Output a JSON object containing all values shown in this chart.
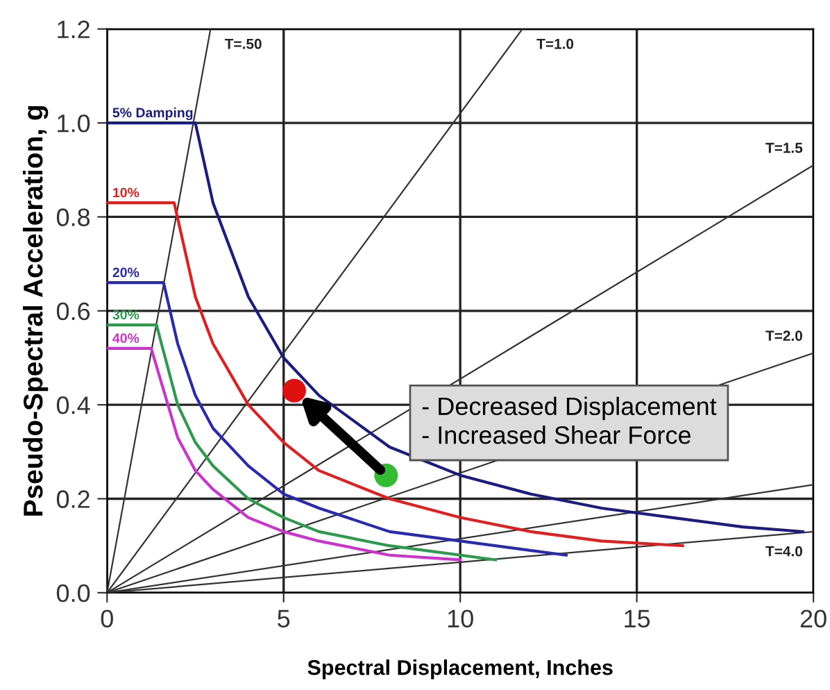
{
  "chart_data": {
    "type": "line",
    "xlabel": "Spectral Displacement, Inches",
    "ylabel": "Pseudo-Spectral Acceleration, g",
    "xlim": [
      0,
      20
    ],
    "ylim": [
      0,
      1.2
    ],
    "xticks": [
      0,
      5,
      10,
      15,
      20
    ],
    "yticks": [
      {
        "value": 0,
        "label": "0.0"
      },
      {
        "value": 0.2,
        "label": "0.2"
      },
      {
        "value": 0.4,
        "label": "0.4"
      },
      {
        "value": 0.6,
        "label": "0.6"
      },
      {
        "value": 0.8,
        "label": "0.8"
      },
      {
        "value": 1.0,
        "label": "1.0"
      },
      {
        "value": 1.2,
        "label": "1.2"
      }
    ],
    "grid": true,
    "series": [
      {
        "name": "T=.50",
        "color": "#333333",
        "x": [
          0,
          2.93
        ],
        "values": [
          0,
          1.2
        ]
      },
      {
        "name": "T=1.0",
        "color": "#333333",
        "x": [
          0,
          11.76
        ],
        "values": [
          0,
          1.2
        ]
      },
      {
        "name": "T=1.5",
        "color": "#333333",
        "x": [
          0,
          20
        ],
        "values": [
          0,
          0.91
        ]
      },
      {
        "name": "T=2.0",
        "color": "#333333",
        "x": [
          0,
          20
        ],
        "values": [
          0,
          0.51
        ]
      },
      {
        "color": "#333333",
        "x": [
          0,
          20
        ],
        "values": [
          0,
          0.23
        ]
      },
      {
        "name": "T=4.0",
        "color": "#333333",
        "x": [
          0,
          20
        ],
        "values": [
          0,
          0.13
        ]
      },
      {
        "name": "5% Damping",
        "color": "#1c1c80",
        "x": [
          0,
          2.5,
          3,
          4,
          5,
          6,
          8,
          10,
          12,
          14,
          16,
          18,
          19.7
        ],
        "values": [
          1.0,
          1.0,
          0.83,
          0.63,
          0.5,
          0.42,
          0.31,
          0.25,
          0.21,
          0.18,
          0.16,
          0.14,
          0.13
        ]
      },
      {
        "name": "10%",
        "color": "#e02020",
        "x": [
          0,
          1.9,
          2.5,
          3,
          4,
          5,
          6,
          8,
          10,
          12,
          14,
          16.3
        ],
        "values": [
          0.83,
          0.83,
          0.63,
          0.53,
          0.4,
          0.32,
          0.26,
          0.2,
          0.16,
          0.13,
          0.11,
          0.1
        ]
      },
      {
        "name": "20%",
        "color": "#2a2ab0",
        "x": [
          0,
          1.6,
          2,
          2.5,
          3,
          4,
          5,
          6,
          8,
          10,
          13
        ],
        "values": [
          0.66,
          0.66,
          0.53,
          0.42,
          0.35,
          0.27,
          0.21,
          0.18,
          0.13,
          0.11,
          0.08
        ]
      },
      {
        "name": "30%",
        "color": "#2e9a4e",
        "x": [
          0,
          1.4,
          2,
          2.5,
          3,
          4,
          5,
          6,
          8,
          11
        ],
        "values": [
          0.57,
          0.57,
          0.4,
          0.32,
          0.27,
          0.2,
          0.16,
          0.13,
          0.1,
          0.07
        ]
      },
      {
        "name": "40%",
        "color": "#cc33cc",
        "x": [
          0,
          1.25,
          2,
          2.5,
          3,
          4,
          5,
          6,
          8,
          10
        ],
        "values": [
          0.52,
          0.52,
          0.33,
          0.26,
          0.22,
          0.16,
          0.13,
          0.11,
          0.08,
          0.07
        ]
      },
      {
        "type": "scatter",
        "x": [
          7.9,
          5.3
        ],
        "values": [
          0.25,
          0.43
        ],
        "colors": [
          "#33bb33",
          "#e01010"
        ]
      }
    ],
    "annotations": [
      "- Decreased Displacement\n- Increased Shear Force"
    ]
  }
}
